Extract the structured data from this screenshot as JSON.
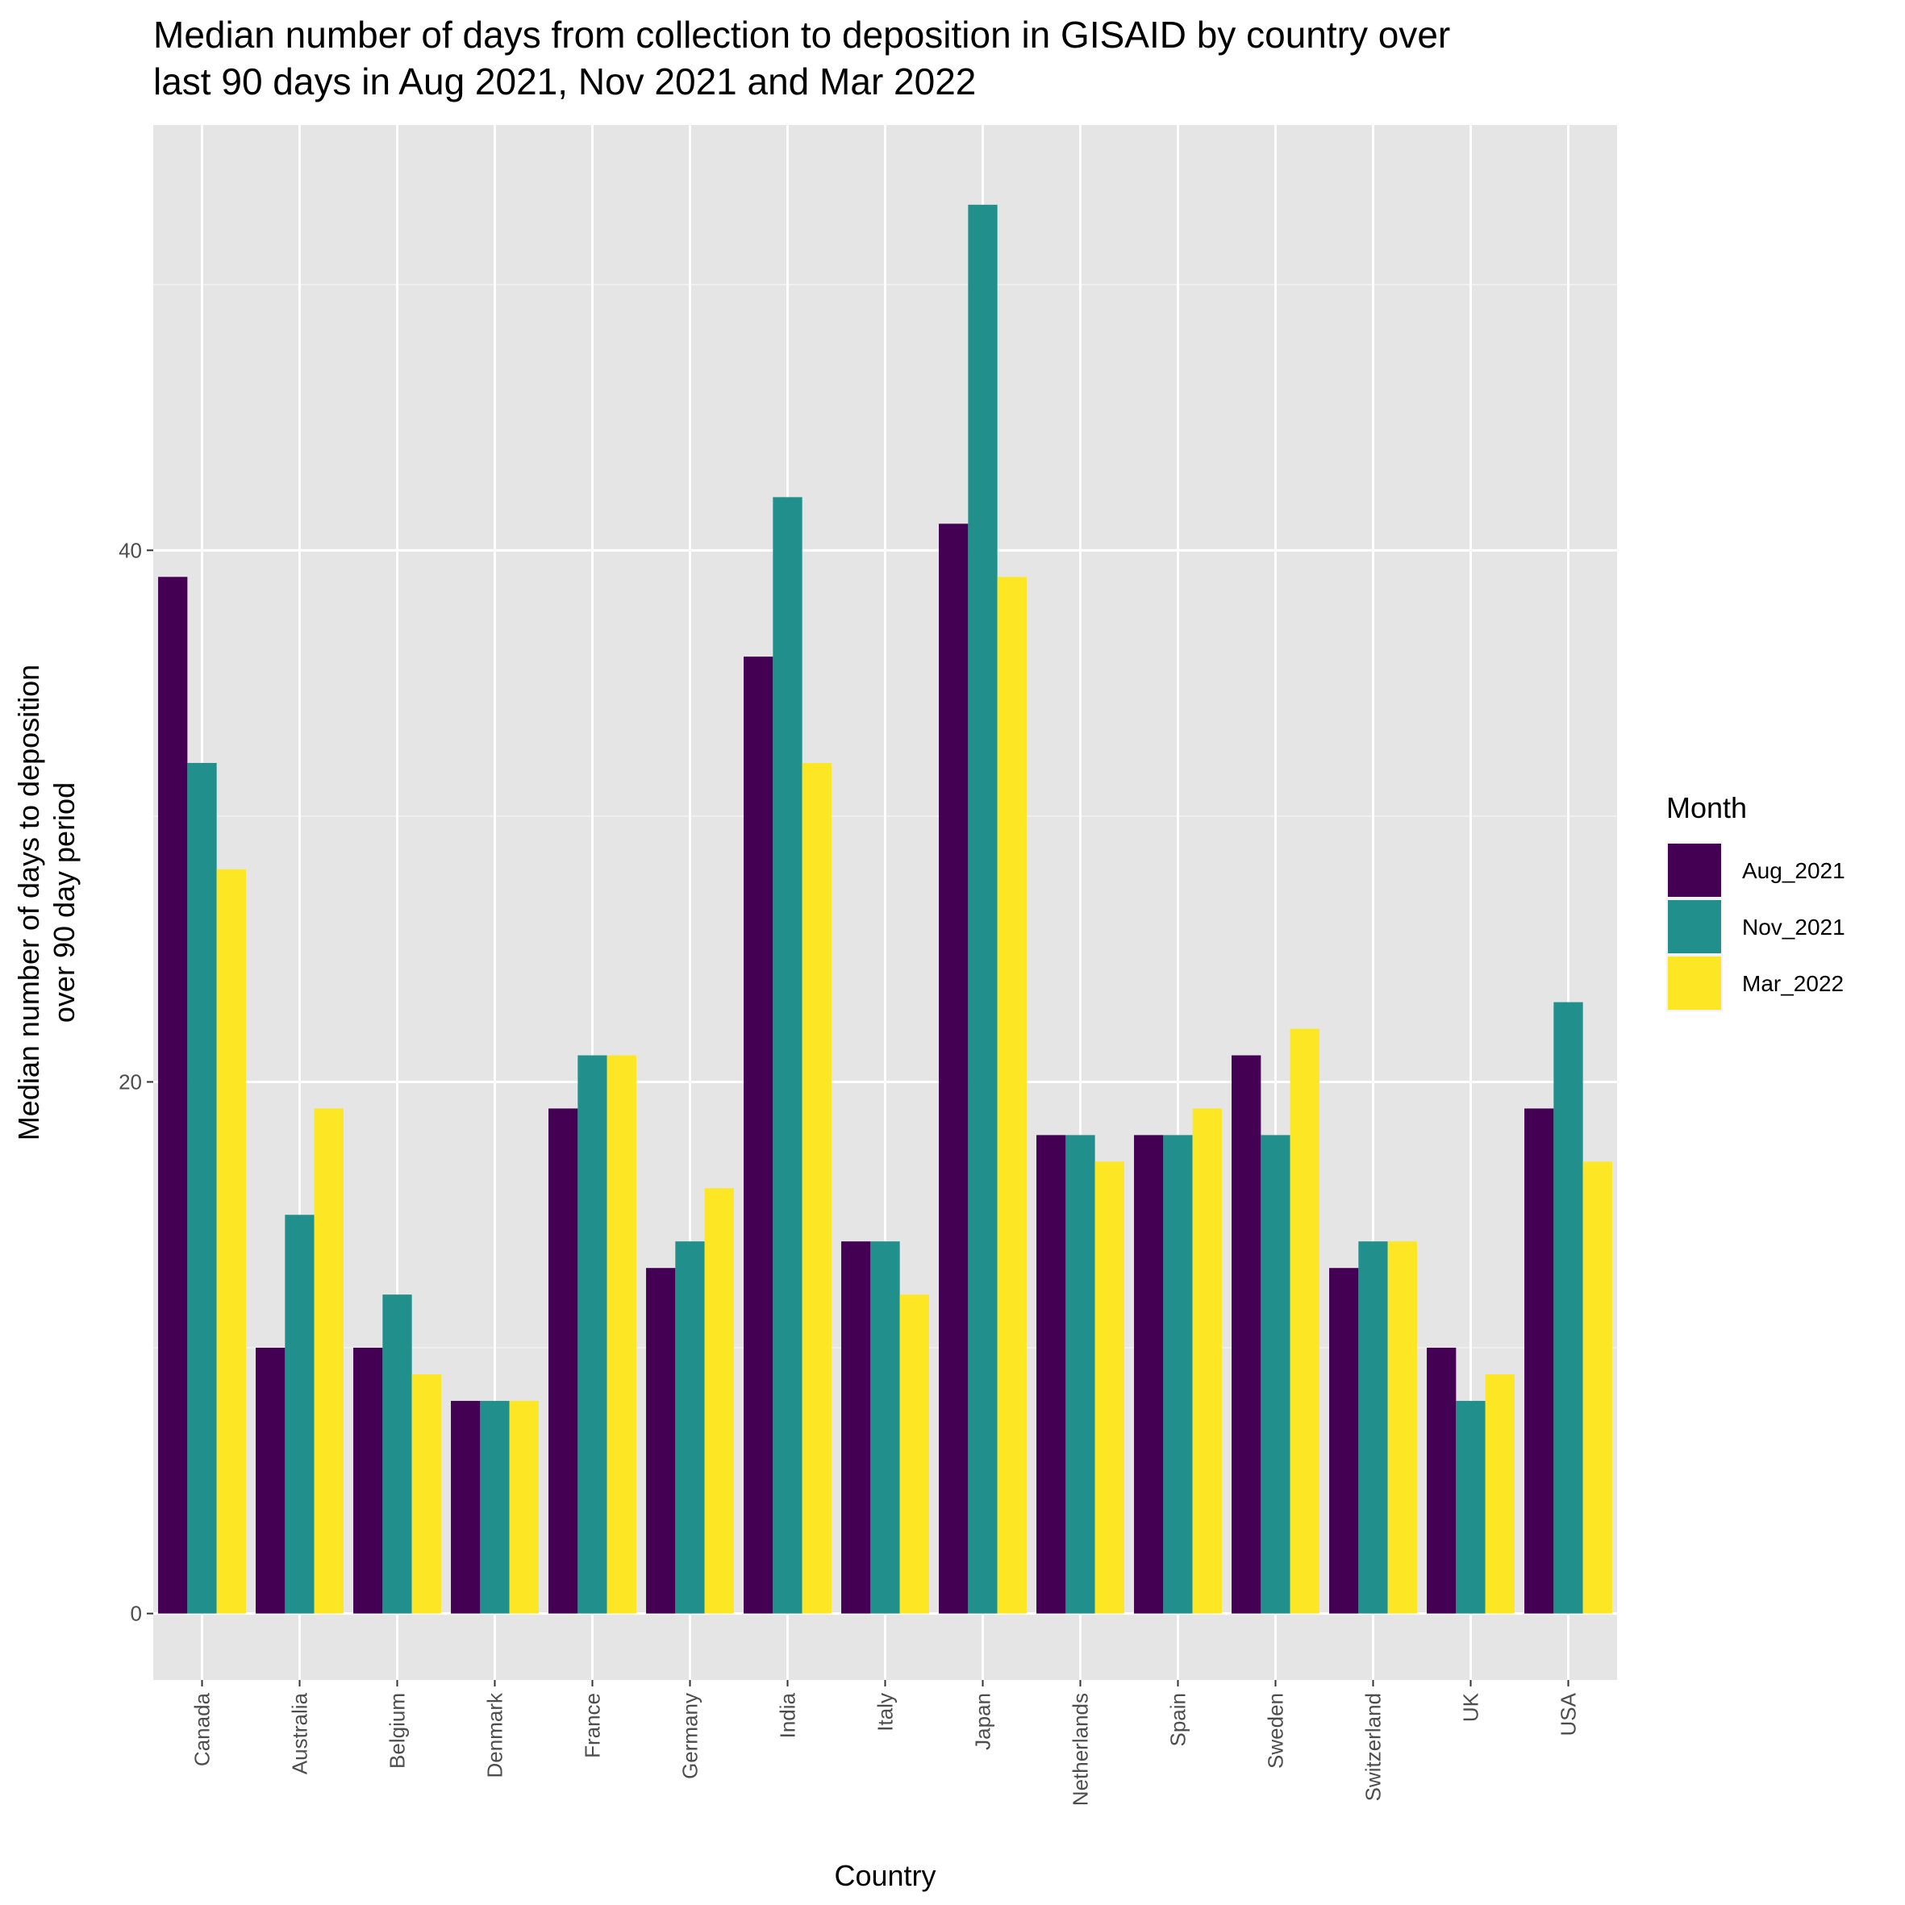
{
  "chart_data": {
    "type": "bar",
    "title": "Median number of days from collection to deposition in GISAID by country over\nlast 90 days in Aug 2021, Nov 2021 and Mar 2022",
    "xlabel": "Country",
    "ylabel": "Median number of days to deposition\nover 90 day period",
    "ylim": [
      -2.5,
      56
    ],
    "yticks": [
      0,
      20,
      40
    ],
    "grid": true,
    "legend": {
      "title": "Month",
      "position": "right"
    },
    "categories": [
      "Canada",
      "Australia",
      "Belgium",
      "Denmark",
      "France",
      "Germany",
      "India",
      "Italy",
      "Japan",
      "Netherlands",
      "Spain",
      "Sweden",
      "Switzerland",
      "UK",
      "USA"
    ],
    "series": [
      {
        "name": "Aug_2021",
        "color": "#440154",
        "values": [
          39,
          10,
          10,
          8,
          19,
          13,
          36,
          14,
          41,
          18,
          18,
          21,
          13,
          10,
          19
        ]
      },
      {
        "name": "Nov_2021",
        "color": "#21908C",
        "values": [
          32,
          15,
          12,
          8,
          21,
          14,
          42,
          14,
          53,
          18,
          18,
          18,
          14,
          8,
          23
        ]
      },
      {
        "name": "Mar_2022",
        "color": "#FDE725",
        "values": [
          28,
          19,
          9,
          8,
          21,
          16,
          32,
          12,
          39,
          17,
          19,
          22,
          14,
          9,
          17
        ]
      }
    ]
  }
}
